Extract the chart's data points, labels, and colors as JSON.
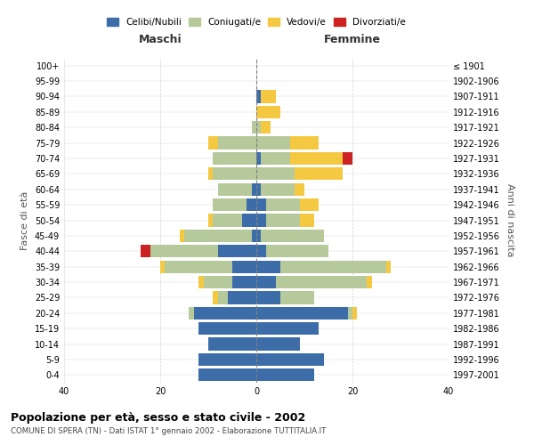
{
  "age_groups": [
    "0-4",
    "5-9",
    "10-14",
    "15-19",
    "20-24",
    "25-29",
    "30-34",
    "35-39",
    "40-44",
    "45-49",
    "50-54",
    "55-59",
    "60-64",
    "65-69",
    "70-74",
    "75-79",
    "80-84",
    "85-89",
    "90-94",
    "95-99",
    "100+"
  ],
  "birth_years": [
    "1997-2001",
    "1992-1996",
    "1987-1991",
    "1982-1986",
    "1977-1981",
    "1972-1976",
    "1967-1971",
    "1962-1966",
    "1957-1961",
    "1952-1956",
    "1947-1951",
    "1942-1946",
    "1937-1941",
    "1932-1936",
    "1927-1931",
    "1922-1926",
    "1917-1921",
    "1912-1916",
    "1907-1911",
    "1902-1906",
    "≤ 1901"
  ],
  "male": {
    "celibi": [
      12,
      12,
      10,
      12,
      13,
      6,
      5,
      5,
      8,
      1,
      3,
      2,
      1,
      0,
      0,
      0,
      0,
      0,
      0,
      0,
      0
    ],
    "coniugati": [
      0,
      0,
      0,
      0,
      1,
      2,
      6,
      14,
      14,
      14,
      6,
      7,
      7,
      9,
      9,
      8,
      1,
      0,
      0,
      0,
      0
    ],
    "vedovi": [
      0,
      0,
      0,
      0,
      0,
      1,
      1,
      1,
      0,
      1,
      1,
      0,
      0,
      1,
      0,
      2,
      0,
      0,
      0,
      0,
      0
    ],
    "divorziati": [
      0,
      0,
      0,
      0,
      0,
      0,
      0,
      0,
      2,
      0,
      0,
      0,
      0,
      0,
      0,
      0,
      0,
      0,
      0,
      0,
      0
    ]
  },
  "female": {
    "nubili": [
      12,
      14,
      9,
      13,
      19,
      5,
      4,
      5,
      2,
      1,
      2,
      2,
      1,
      0,
      1,
      0,
      0,
      0,
      1,
      0,
      0
    ],
    "coniugate": [
      0,
      0,
      0,
      0,
      1,
      7,
      19,
      22,
      13,
      13,
      7,
      7,
      7,
      8,
      6,
      7,
      1,
      0,
      0,
      0,
      0
    ],
    "vedove": [
      0,
      0,
      0,
      0,
      1,
      0,
      1,
      1,
      0,
      0,
      3,
      4,
      2,
      10,
      11,
      6,
      2,
      5,
      3,
      0,
      0
    ],
    "divorziate": [
      0,
      0,
      0,
      0,
      0,
      0,
      0,
      0,
      0,
      0,
      0,
      0,
      0,
      0,
      2,
      0,
      0,
      0,
      0,
      0,
      0
    ]
  },
  "colors": {
    "celibi": "#3d6da8",
    "coniugati": "#b5c99a",
    "vedovi": "#f5c842",
    "divorziati": "#cc2222"
  },
  "xlim": 40,
  "title": "Popolazione per età, sesso e stato civile - 2002",
  "subtitle": "COMUNE DI SPERA (TN) - Dati ISTAT 1° gennaio 2002 - Elaborazione TUTTITALIA.IT",
  "ylabel_left": "Fasce di età",
  "ylabel_right": "Anni di nascita",
  "legend_labels": [
    "Celibi/Nubili",
    "Coniugati/e",
    "Vedovi/e",
    "Divorziati/e"
  ],
  "maschi_label": "Maschi",
  "femmine_label": "Femmine"
}
